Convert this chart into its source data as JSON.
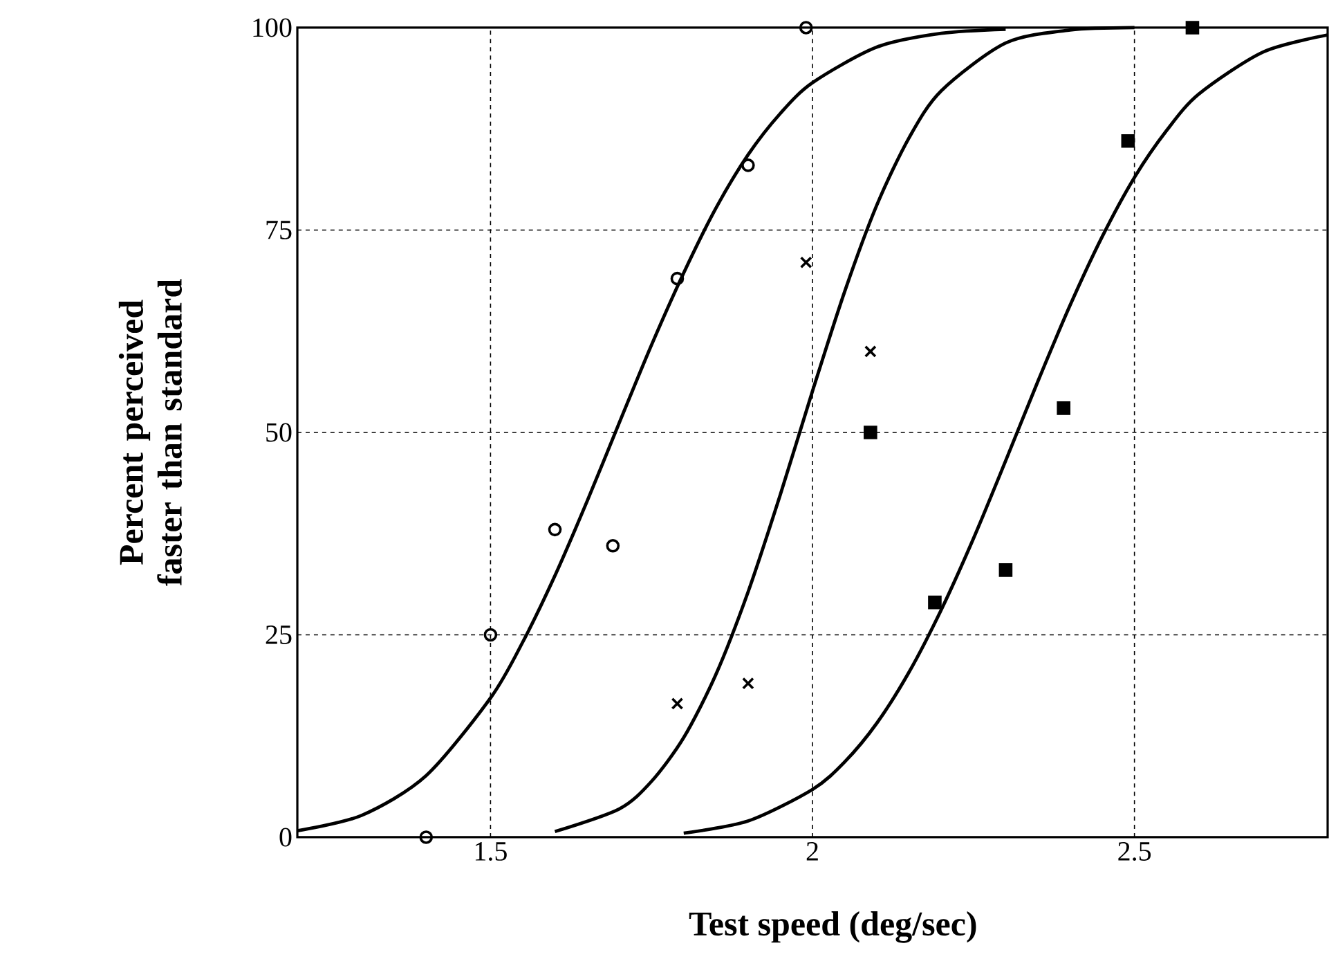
{
  "chart_data": {
    "type": "scatter",
    "xlabel": "Test speed (deg/sec)",
    "ylabel": "Percent perceived faster than standard",
    "xlim": [
      1.2,
      2.8
    ],
    "ylim": [
      0,
      100
    ],
    "xticks": [
      1.5,
      2,
      2.5
    ],
    "yticks": [
      0,
      25,
      50,
      75,
      100
    ],
    "grid": true,
    "series": [
      {
        "marker": "circle",
        "color": "#000000",
        "x": [
          1.4,
          1.5,
          1.6,
          1.69,
          1.79,
          1.9,
          1.99
        ],
        "values": [
          0,
          25,
          38,
          36,
          69,
          83,
          100
        ]
      },
      {
        "marker": "cross",
        "color": "#000000",
        "x": [
          1.79,
          1.9,
          1.99,
          2.09
        ],
        "values": [
          16.5,
          19,
          71,
          60
        ]
      },
      {
        "marker": "square",
        "color": "#000000",
        "x": [
          2.09,
          2.19,
          2.3,
          2.39,
          2.49,
          2.59
        ],
        "values": [
          50,
          29,
          33,
          53,
          86,
          100
        ]
      },
      {
        "type": "line",
        "marker": "none",
        "line_style": "solid",
        "color": "#000000",
        "x": [
          1.2,
          1.3,
          1.4,
          1.5,
          1.55,
          1.6,
          1.65,
          1.7,
          1.75,
          1.8,
          1.85,
          1.9,
          1.95,
          2.0,
          2.1,
          2.2,
          2.3
        ],
        "values": [
          0.8,
          2.7,
          7.6,
          17.2,
          24.1,
          32.3,
          41.5,
          51.2,
          60.8,
          69.7,
          77.7,
          84.3,
          89.4,
          93.2,
          97.6,
          99.3,
          99.8
        ]
      },
      {
        "type": "line",
        "marker": "none",
        "line_style": "solid",
        "color": "#000000",
        "x": [
          1.6,
          1.7,
          1.75,
          1.8,
          1.85,
          1.9,
          1.95,
          2.0,
          2.05,
          2.1,
          2.15,
          2.2,
          2.3,
          2.4,
          2.5
        ],
        "values": [
          0.7,
          3.5,
          6.9,
          12.3,
          20.1,
          30.3,
          42.3,
          55.1,
          67.4,
          78.1,
          86.4,
          92.2,
          98.1,
          99.7,
          100
        ]
      },
      {
        "type": "line",
        "marker": "none",
        "line_style": "solid",
        "color": "#000000",
        "x": [
          1.8,
          1.9,
          2.0,
          2.05,
          2.1,
          2.15,
          2.2,
          2.25,
          2.3,
          2.35,
          2.4,
          2.45,
          2.5,
          2.55,
          2.6,
          2.7,
          2.8
        ],
        "values": [
          0.5,
          2.0,
          5.9,
          9.3,
          14.1,
          20.4,
          28.1,
          36.9,
          46.5,
          56.3,
          65.7,
          74.2,
          81.5,
          87.3,
          91.8,
          97.0,
          99.1
        ]
      }
    ]
  }
}
